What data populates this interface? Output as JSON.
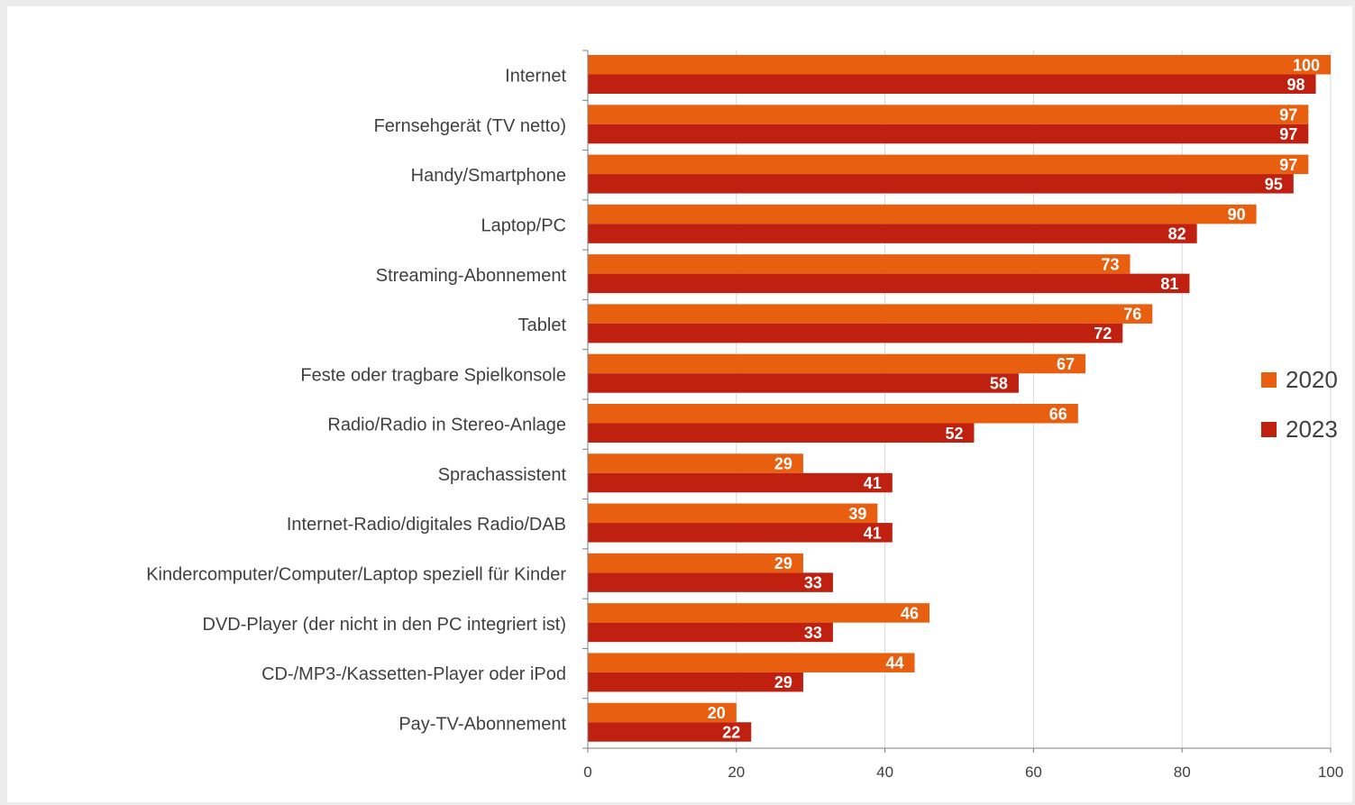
{
  "chart_data": {
    "type": "bar",
    "orientation": "horizontal",
    "categories": [
      "Internet",
      "Fernsehgerät (TV netto)",
      "Handy/Smartphone",
      "Laptop/PC",
      "Streaming-Abonnement",
      "Tablet",
      "Feste oder tragbare Spielkonsole",
      "Radio/Radio in Stereo-Anlage",
      "Sprachassistent",
      "Internet-Radio/digitales Radio/DAB",
      "Kindercomputer/Computer/Laptop speziell für Kinder",
      "DVD-Player (der nicht in den PC integriert ist)",
      "CD-/MP3-/Kassetten-Player oder iPod",
      "Pay-TV-Abonnement"
    ],
    "series": [
      {
        "name": "2020",
        "color": "#e8600f",
        "values": [
          100,
          97,
          97,
          90,
          73,
          76,
          67,
          66,
          29,
          39,
          29,
          46,
          44,
          20
        ]
      },
      {
        "name": "2023",
        "color": "#c0200f",
        "values": [
          98,
          97,
          95,
          82,
          81,
          72,
          58,
          52,
          41,
          41,
          33,
          33,
          29,
          22
        ]
      }
    ],
    "xlim": [
      0,
      100
    ],
    "xticks": [
      0,
      20,
      40,
      60,
      80,
      100
    ],
    "grid": true,
    "legend_position": "right",
    "data_labels": true
  }
}
